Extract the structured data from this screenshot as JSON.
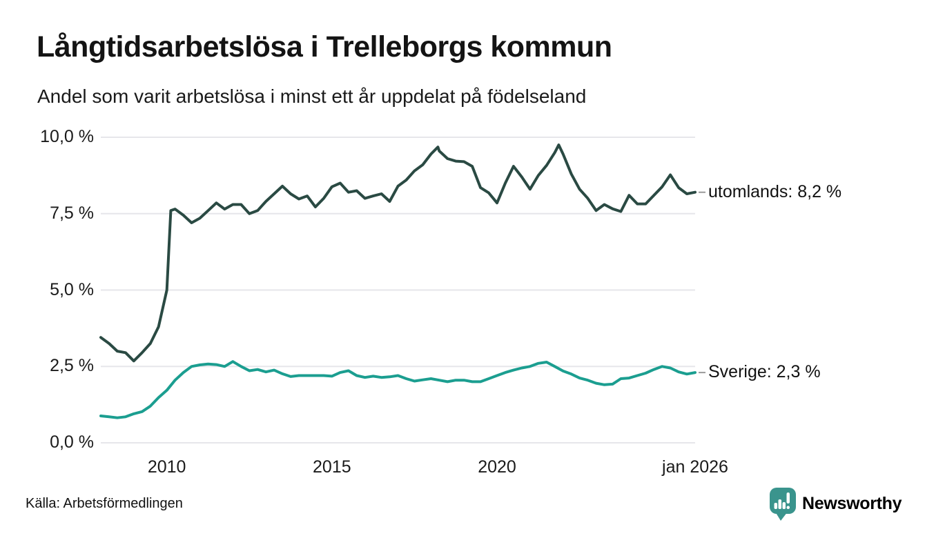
{
  "header": {
    "title": "Långtidsarbetslösa i Trelleborgs kommun",
    "subtitle": "Andel som varit arbetslösa i minst ett år uppdelat på födelseland"
  },
  "footer": {
    "source": "Källa: Arbetsförmedlingen",
    "brand": "Newsworthy",
    "brand_icon": "newsworthy-chart-pin-icon",
    "brand_color": "#3a948d"
  },
  "colors": {
    "utomlands_line": "#2a4a43",
    "sverige_line": "#1b9e90",
    "gridline": "#e6e6ea",
    "leader_dash": "#9a9a9a",
    "text": "#1a1a1a",
    "background": "#ffffff"
  },
  "chart_data": {
    "type": "line",
    "title": "Långtidsarbetslösa i Trelleborgs kommun",
    "subtitle": "Andel som varit arbetslösa i minst ett år uppdelat på födelseland",
    "xlabel": "",
    "ylabel": "",
    "x_unit": "decimal_year",
    "x_range": [
      2008.0,
      2026.0
    ],
    "ylim": [
      0,
      10
    ],
    "grid": "horizontal-only",
    "legend_position": "right-end-labels",
    "y_ticks": [
      {
        "value": 0,
        "label": "0,0 %"
      },
      {
        "value": 2.5,
        "label": "2,5 %"
      },
      {
        "value": 5,
        "label": "5,0 %"
      },
      {
        "value": 7.5,
        "label": "7,5 %"
      },
      {
        "value": 10,
        "label": "10,0 %"
      }
    ],
    "x_ticks": [
      {
        "value": 2010,
        "label": "2010"
      },
      {
        "value": 2015,
        "label": "2015"
      },
      {
        "value": 2020,
        "label": "2020"
      },
      {
        "value": 2026,
        "label": "jan 2026"
      }
    ],
    "series": [
      {
        "name": "utomlands",
        "end_label": "utomlands: 8,2 %",
        "end_value_text": "8,2 %",
        "color": "#2a4a43",
        "points": [
          [
            2008.0,
            3.45
          ],
          [
            2008.25,
            3.25
          ],
          [
            2008.5,
            3.0
          ],
          [
            2008.75,
            2.95
          ],
          [
            2009.0,
            2.68
          ],
          [
            2009.25,
            2.95
          ],
          [
            2009.5,
            3.25
          ],
          [
            2009.75,
            3.8
          ],
          [
            2010.0,
            5.0
          ],
          [
            2010.12,
            7.6
          ],
          [
            2010.25,
            7.65
          ],
          [
            2010.5,
            7.45
          ],
          [
            2010.75,
            7.2
          ],
          [
            2011.0,
            7.35
          ],
          [
            2011.25,
            7.6
          ],
          [
            2011.5,
            7.85
          ],
          [
            2011.75,
            7.65
          ],
          [
            2012.0,
            7.8
          ],
          [
            2012.25,
            7.8
          ],
          [
            2012.5,
            7.5
          ],
          [
            2012.75,
            7.6
          ],
          [
            2013.0,
            7.9
          ],
          [
            2013.25,
            8.15
          ],
          [
            2013.5,
            8.4
          ],
          [
            2013.75,
            8.15
          ],
          [
            2014.0,
            7.98
          ],
          [
            2014.25,
            8.08
          ],
          [
            2014.5,
            7.72
          ],
          [
            2014.75,
            8.0
          ],
          [
            2015.0,
            8.38
          ],
          [
            2015.25,
            8.5
          ],
          [
            2015.5,
            8.2
          ],
          [
            2015.75,
            8.25
          ],
          [
            2016.0,
            8.0
          ],
          [
            2016.25,
            8.08
          ],
          [
            2016.5,
            8.15
          ],
          [
            2016.75,
            7.9
          ],
          [
            2017.0,
            8.4
          ],
          [
            2017.25,
            8.6
          ],
          [
            2017.5,
            8.9
          ],
          [
            2017.75,
            9.1
          ],
          [
            2018.0,
            9.45
          ],
          [
            2018.21,
            9.68
          ],
          [
            2018.25,
            9.55
          ],
          [
            2018.5,
            9.3
          ],
          [
            2018.75,
            9.22
          ],
          [
            2019.0,
            9.2
          ],
          [
            2019.25,
            9.05
          ],
          [
            2019.5,
            8.35
          ],
          [
            2019.75,
            8.18
          ],
          [
            2020.0,
            7.85
          ],
          [
            2020.25,
            8.5
          ],
          [
            2020.5,
            9.05
          ],
          [
            2020.75,
            8.7
          ],
          [
            2021.0,
            8.3
          ],
          [
            2021.25,
            8.75
          ],
          [
            2021.5,
            9.08
          ],
          [
            2021.75,
            9.5
          ],
          [
            2021.87,
            9.75
          ],
          [
            2022.0,
            9.45
          ],
          [
            2022.25,
            8.8
          ],
          [
            2022.5,
            8.3
          ],
          [
            2022.75,
            8.0
          ],
          [
            2023.0,
            7.6
          ],
          [
            2023.25,
            7.8
          ],
          [
            2023.5,
            7.66
          ],
          [
            2023.75,
            7.57
          ],
          [
            2024.0,
            8.1
          ],
          [
            2024.25,
            7.82
          ],
          [
            2024.5,
            7.82
          ],
          [
            2024.75,
            8.1
          ],
          [
            2025.0,
            8.38
          ],
          [
            2025.25,
            8.77
          ],
          [
            2025.5,
            8.35
          ],
          [
            2025.75,
            8.15
          ],
          [
            2026.0,
            8.2
          ]
        ]
      },
      {
        "name": "Sverige",
        "end_label": "Sverige: 2,3 %",
        "end_value_text": "2,3 %",
        "color": "#1b9e90",
        "points": [
          [
            2008.0,
            0.88
          ],
          [
            2008.25,
            0.85
          ],
          [
            2008.5,
            0.82
          ],
          [
            2008.75,
            0.85
          ],
          [
            2009.0,
            0.95
          ],
          [
            2009.25,
            1.02
          ],
          [
            2009.5,
            1.2
          ],
          [
            2009.75,
            1.48
          ],
          [
            2010.0,
            1.72
          ],
          [
            2010.25,
            2.05
          ],
          [
            2010.5,
            2.3
          ],
          [
            2010.75,
            2.5
          ],
          [
            2011.0,
            2.55
          ],
          [
            2011.25,
            2.58
          ],
          [
            2011.5,
            2.56
          ],
          [
            2011.75,
            2.5
          ],
          [
            2012.0,
            2.66
          ],
          [
            2012.25,
            2.5
          ],
          [
            2012.5,
            2.36
          ],
          [
            2012.75,
            2.4
          ],
          [
            2013.0,
            2.32
          ],
          [
            2013.25,
            2.38
          ],
          [
            2013.5,
            2.26
          ],
          [
            2013.75,
            2.17
          ],
          [
            2014.0,
            2.2
          ],
          [
            2014.25,
            2.2
          ],
          [
            2014.5,
            2.2
          ],
          [
            2014.75,
            2.2
          ],
          [
            2015.0,
            2.18
          ],
          [
            2015.25,
            2.3
          ],
          [
            2015.5,
            2.36
          ],
          [
            2015.75,
            2.2
          ],
          [
            2016.0,
            2.14
          ],
          [
            2016.25,
            2.18
          ],
          [
            2016.5,
            2.14
          ],
          [
            2016.75,
            2.16
          ],
          [
            2017.0,
            2.2
          ],
          [
            2017.25,
            2.1
          ],
          [
            2017.5,
            2.02
          ],
          [
            2017.75,
            2.06
          ],
          [
            2018.0,
            2.1
          ],
          [
            2018.25,
            2.05
          ],
          [
            2018.5,
            2.0
          ],
          [
            2018.75,
            2.05
          ],
          [
            2019.0,
            2.05
          ],
          [
            2019.25,
            2.0
          ],
          [
            2019.5,
            2.0
          ],
          [
            2019.75,
            2.1
          ],
          [
            2020.0,
            2.2
          ],
          [
            2020.25,
            2.3
          ],
          [
            2020.5,
            2.38
          ],
          [
            2020.75,
            2.45
          ],
          [
            2021.0,
            2.5
          ],
          [
            2021.25,
            2.6
          ],
          [
            2021.5,
            2.64
          ],
          [
            2021.75,
            2.5
          ],
          [
            2022.0,
            2.35
          ],
          [
            2022.25,
            2.25
          ],
          [
            2022.5,
            2.12
          ],
          [
            2022.75,
            2.05
          ],
          [
            2023.0,
            1.95
          ],
          [
            2023.25,
            1.9
          ],
          [
            2023.5,
            1.92
          ],
          [
            2023.75,
            2.1
          ],
          [
            2024.0,
            2.12
          ],
          [
            2024.25,
            2.2
          ],
          [
            2024.5,
            2.28
          ],
          [
            2024.75,
            2.4
          ],
          [
            2025.0,
            2.5
          ],
          [
            2025.25,
            2.45
          ],
          [
            2025.5,
            2.32
          ],
          [
            2025.75,
            2.25
          ],
          [
            2026.0,
            2.3
          ]
        ]
      }
    ]
  }
}
